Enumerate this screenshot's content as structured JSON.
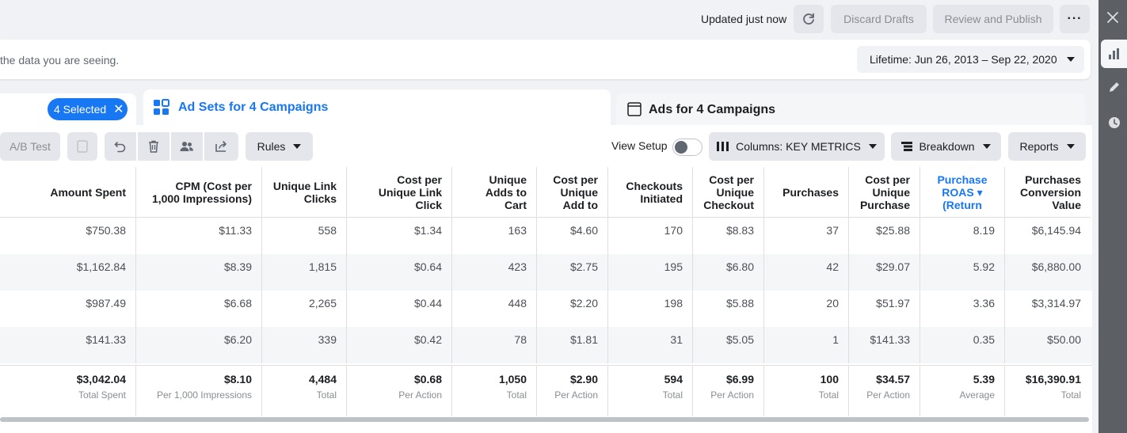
{
  "topbar": {
    "updated": "Updated just now",
    "discard": "Discard Drafts",
    "publish": "Review and Publish",
    "more": "···"
  },
  "infobar": {
    "text": "the data you are seeing.",
    "date_range": "Lifetime: Jun 26, 2013 – Sep 22, 2020"
  },
  "tabs": {
    "selected_chip": "4 Selected",
    "adsets": "Ad Sets for 4 Campaigns",
    "ads": "Ads for 4 Campaigns"
  },
  "toolbar": {
    "ab_test": "A/B Test",
    "rules": "Rules",
    "view_setup": "View Setup",
    "columns": "Columns: KEY METRICS",
    "breakdown": "Breakdown",
    "reports": "Reports"
  },
  "table": {
    "headers": [
      [
        "Amount Spent"
      ],
      [
        "CPM (Cost per",
        "1,000 Impressions)"
      ],
      [
        "Unique Link",
        "Clicks"
      ],
      [
        "Cost per",
        "Unique Link",
        "Click"
      ],
      [
        "Unique",
        "Adds to",
        "Cart"
      ],
      [
        "Cost per",
        "Unique",
        "Add to"
      ],
      [
        "Checkouts",
        "Initiated"
      ],
      [
        "Cost per",
        "Unique",
        "Checkout"
      ],
      [
        "Purchases"
      ],
      [
        "Cost per",
        "Unique",
        "Purchase"
      ],
      [
        "Purchase",
        "ROAS ▾",
        "(Return"
      ],
      [
        "Purchases",
        "Conversion",
        "Value"
      ]
    ],
    "rows": [
      [
        "$750.38",
        "$11.33",
        "558",
        "$1.34",
        "163",
        "$4.60",
        "170",
        "$8.83",
        "37",
        "$25.88",
        "8.19",
        "$6,145.94"
      ],
      [
        "$1,162.84",
        "$8.39",
        "1,815",
        "$0.64",
        "423",
        "$2.75",
        "195",
        "$6.80",
        "42",
        "$29.07",
        "5.92",
        "$6,880.00"
      ],
      [
        "$987.49",
        "$6.68",
        "2,265",
        "$0.44",
        "448",
        "$2.20",
        "198",
        "$5.88",
        "20",
        "$51.97",
        "3.36",
        "$3,314.97"
      ],
      [
        "$141.33",
        "$6.20",
        "339",
        "$0.42",
        "78",
        "$1.81",
        "31",
        "$5.05",
        "1",
        "$141.33",
        "0.35",
        "$50.00"
      ]
    ],
    "totals": [
      {
        "value": "$3,042.04",
        "label": "Total Spent"
      },
      {
        "value": "$8.10",
        "label": "Per 1,000 Impressions"
      },
      {
        "value": "4,484",
        "label": "Total"
      },
      {
        "value": "$0.68",
        "label": "Per Action"
      },
      {
        "value": "1,050",
        "label": "Total"
      },
      {
        "value": "$2.90",
        "label": "Per Action"
      },
      {
        "value": "594",
        "label": "Total"
      },
      {
        "value": "$6.99",
        "label": "Per Action"
      },
      {
        "value": "100",
        "label": "Total"
      },
      {
        "value": "$34.57",
        "label": "Per Action"
      },
      {
        "value": "5.39",
        "label": "Average"
      },
      {
        "value": "$16,390.91",
        "label": "Total"
      }
    ]
  },
  "colors": {
    "accent": "#1877f2",
    "button_bg": "#e4e6eb",
    "rail_bg": "#5c5f63"
  },
  "icons": [
    "refresh-icon",
    "more-icon",
    "chevron-down-icon",
    "close-icon",
    "grid-icon",
    "ad-frame-icon",
    "copy-icon",
    "undo-icon",
    "trash-icon",
    "people-icon",
    "share-icon",
    "columns-icon",
    "breakdown-icon",
    "chart-icon",
    "pencil-icon",
    "clock-icon"
  ]
}
